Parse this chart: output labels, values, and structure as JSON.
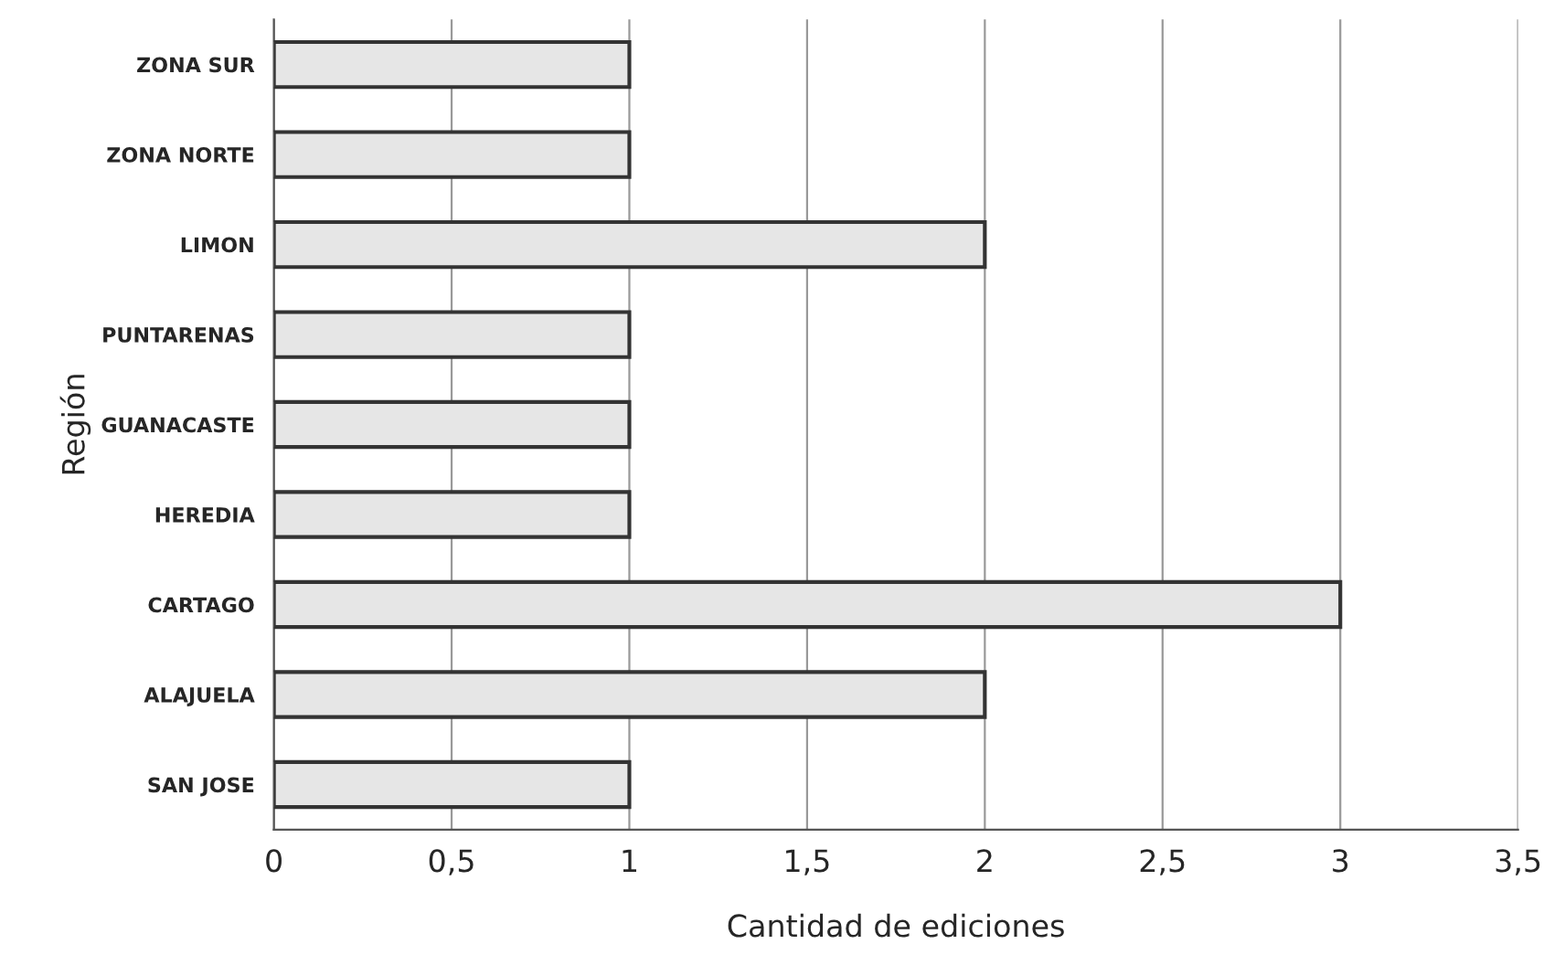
{
  "chart_data": {
    "type": "bar",
    "orientation": "horizontal",
    "xlabel": "Cantidad de ediciones",
    "ylabel": "Región",
    "categories": [
      "ZONA SUR",
      "ZONA NORTE",
      "LIMON",
      "PUNTARENAS",
      "GUANACASTE",
      "HEREDIA",
      "CARTAGO",
      "ALAJUELA",
      "SAN JOSE"
    ],
    "values": [
      1,
      1,
      2,
      1,
      1,
      1,
      3,
      2,
      1
    ],
    "color": "#e6e6e6",
    "xlim": [
      0,
      3.5
    ],
    "xticks": [
      0,
      {
        "value": 0.5,
        "label": "0,5"
      },
      1,
      {
        "value": 1.5,
        "label": "1,5"
      },
      2,
      {
        "value": 2.5,
        "label": "2,5"
      },
      3,
      {
        "value": 3.5,
        "label": "3,5"
      }
    ],
    "grid": "x",
    "legend": false
  }
}
